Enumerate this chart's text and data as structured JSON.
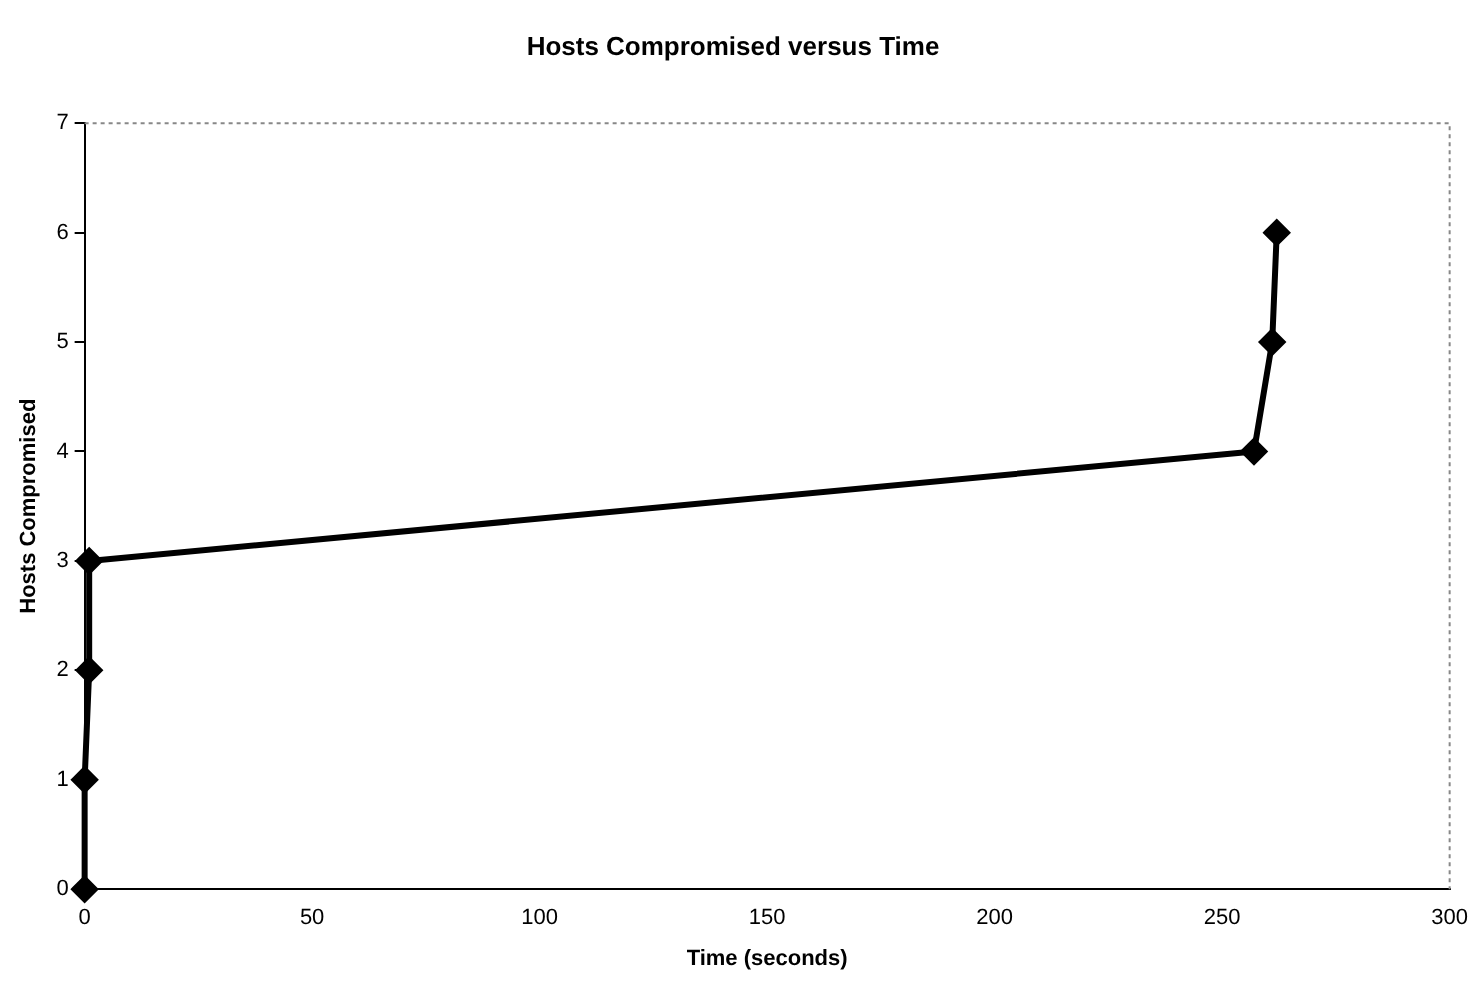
{
  "chart_data": {
    "type": "line",
    "title": "Hosts Compromised versus Time",
    "xlabel": "Time (seconds)",
    "ylabel": "Hosts Compromised",
    "x": [
      0,
      0,
      1,
      1,
      257,
      261,
      262
    ],
    "series": [
      {
        "color": "#000000",
        "values": [
          0,
          1,
          2,
          3,
          4,
          5,
          6
        ]
      }
    ],
    "xlim": [
      0,
      300
    ],
    "xticks": [
      0,
      50,
      100,
      150,
      200,
      250,
      300
    ],
    "ylim": [
      0,
      7
    ],
    "yticks": [
      0,
      1,
      2,
      3,
      4,
      5,
      6,
      7
    ],
    "grid": false,
    "legend": false,
    "marker": "diamond",
    "line_style": "solid"
  }
}
